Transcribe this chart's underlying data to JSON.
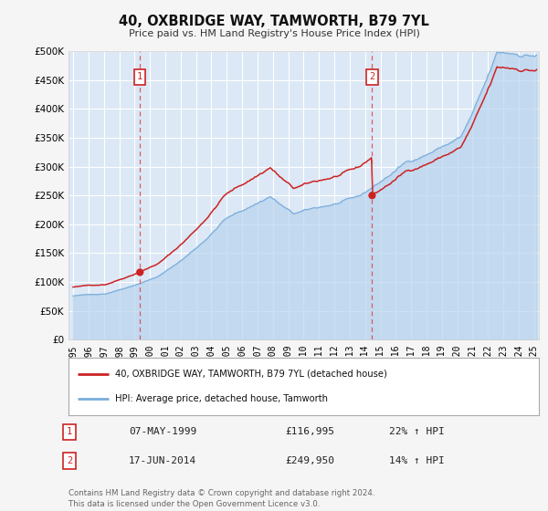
{
  "title": "40, OXBRIDGE WAY, TAMWORTH, B79 7YL",
  "subtitle": "Price paid vs. HM Land Registry's House Price Index (HPI)",
  "fig_bg_color": "#f5f5f5",
  "plot_bg_color": "#dce8f5",
  "grid_color": "#ffffff",
  "ylim": [
    0,
    500000
  ],
  "yticks": [
    0,
    50000,
    100000,
    150000,
    200000,
    250000,
    300000,
    350000,
    400000,
    450000,
    500000
  ],
  "ytick_labels": [
    "£0",
    "£50K",
    "£100K",
    "£150K",
    "£200K",
    "£250K",
    "£300K",
    "£350K",
    "£400K",
    "£450K",
    "£500K"
  ],
  "xlim_start": 1994.7,
  "xlim_end": 2025.3,
  "xtick_years": [
    1995,
    1996,
    1997,
    1998,
    1999,
    2000,
    2001,
    2002,
    2003,
    2004,
    2005,
    2006,
    2007,
    2008,
    2009,
    2010,
    2011,
    2012,
    2013,
    2014,
    2015,
    2016,
    2017,
    2018,
    2019,
    2020,
    2021,
    2022,
    2023,
    2024,
    2025
  ],
  "sale1_date": 1999.35,
  "sale1_price": 116995,
  "sale1_label": "07-MAY-1999",
  "sale1_price_label": "£116,995",
  "sale1_pct": "22% ↑ HPI",
  "sale2_date": 2014.46,
  "sale2_price": 249950,
  "sale2_label": "17-JUN-2014",
  "sale2_price_label": "£249,950",
  "sale2_pct": "14% ↑ HPI",
  "hpi_line_color": "#7aaddc",
  "hpi_fill_color": "#b8d4ee",
  "price_line_color": "#cc2222",
  "marker_color": "#cc2222",
  "vline_color": "#dd4444",
  "legend_label_price": "40, OXBRIDGE WAY, TAMWORTH, B79 7YL (detached house)",
  "legend_label_hpi": "HPI: Average price, detached house, Tamworth",
  "footer1": "Contains HM Land Registry data © Crown copyright and database right 2024.",
  "footer2": "This data is licensed under the Open Government Licence v3.0."
}
